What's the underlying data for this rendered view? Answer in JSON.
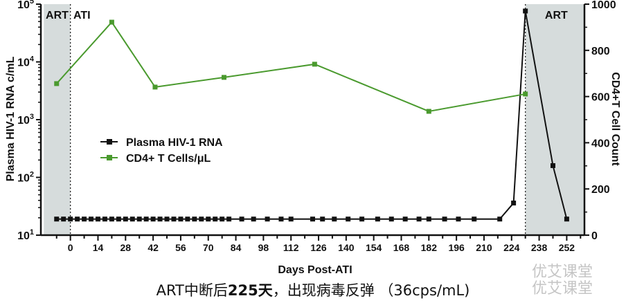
{
  "chart_data": {
    "type": "line",
    "xlabel": "Days Post-ATI",
    "ylabel_left": "Plasma HIV-1 RNA c/mL",
    "ylabel_right": "CD4+T Cell Count",
    "xlim": [
      -15,
      261
    ],
    "ylim_left_log": [
      10,
      100000
    ],
    "ylim_right": [
      0,
      1000
    ],
    "x_ticks": [
      0,
      14,
      28,
      42,
      56,
      70,
      84,
      98,
      112,
      126,
      140,
      154,
      168,
      182,
      196,
      210,
      224,
      238,
      252
    ],
    "y_left_ticks": [
      {
        "base": "10",
        "exp": "1",
        "value": 10
      },
      {
        "base": "10",
        "exp": "2",
        "value": 100
      },
      {
        "base": "10",
        "exp": "3",
        "value": 1000
      },
      {
        "base": "10",
        "exp": "4",
        "value": 10000
      },
      {
        "base": "10",
        "exp": "5",
        "value": 100000
      }
    ],
    "y_right_ticks": [
      0,
      200,
      400,
      600,
      800,
      1000
    ],
    "regions": [
      {
        "label": "ART",
        "from": -13.5,
        "to": 0
      },
      {
        "label": "ART",
        "from": 231,
        "to": 261
      }
    ],
    "region_label_ati": "ATI",
    "legend": {
      "placement": "center-left"
    },
    "series": [
      {
        "name": "Plasma HIV-1 RNA",
        "axis": "left",
        "color": "#111111",
        "x": [
          -7,
          -3.5,
          0,
          3.5,
          7,
          10.5,
          14,
          17.5,
          21,
          24.5,
          28,
          31.5,
          35,
          38.5,
          42,
          45.5,
          49,
          52.5,
          56,
          59.5,
          63,
          66.5,
          70,
          73.5,
          77,
          80.5,
          87,
          93,
          100,
          107,
          112,
          123,
          128,
          134,
          141,
          148,
          156,
          163,
          170,
          177,
          182,
          190,
          197,
          205,
          218,
          225,
          231,
          245,
          252
        ],
        "y": [
          19,
          19,
          19,
          19,
          19,
          19,
          19,
          19,
          19,
          19,
          19,
          19,
          19,
          19,
          19,
          19,
          19,
          19,
          19,
          19,
          19,
          19,
          19,
          19,
          19,
          19,
          19,
          19,
          19,
          19,
          19,
          19,
          19,
          19,
          19,
          19,
          19,
          19,
          19,
          19,
          19,
          19,
          19,
          19,
          19,
          36,
          76000,
          160,
          19
        ]
      },
      {
        "name": "CD4+ T Cells/μL",
        "axis": "right",
        "color": "#4a9a2e",
        "x": [
          -7,
          21,
          43,
          78,
          124,
          182,
          231
        ],
        "y": [
          656,
          922,
          641,
          683,
          740,
          536,
          611
        ]
      }
    ]
  },
  "caption": {
    "part1": "ART中断后",
    "part2": "225天",
    "part3": "，出现病毒反弹 （36cps/mL)"
  },
  "watermark": {
    "line1": "优艾课堂",
    "line2": "优艾课堂"
  }
}
